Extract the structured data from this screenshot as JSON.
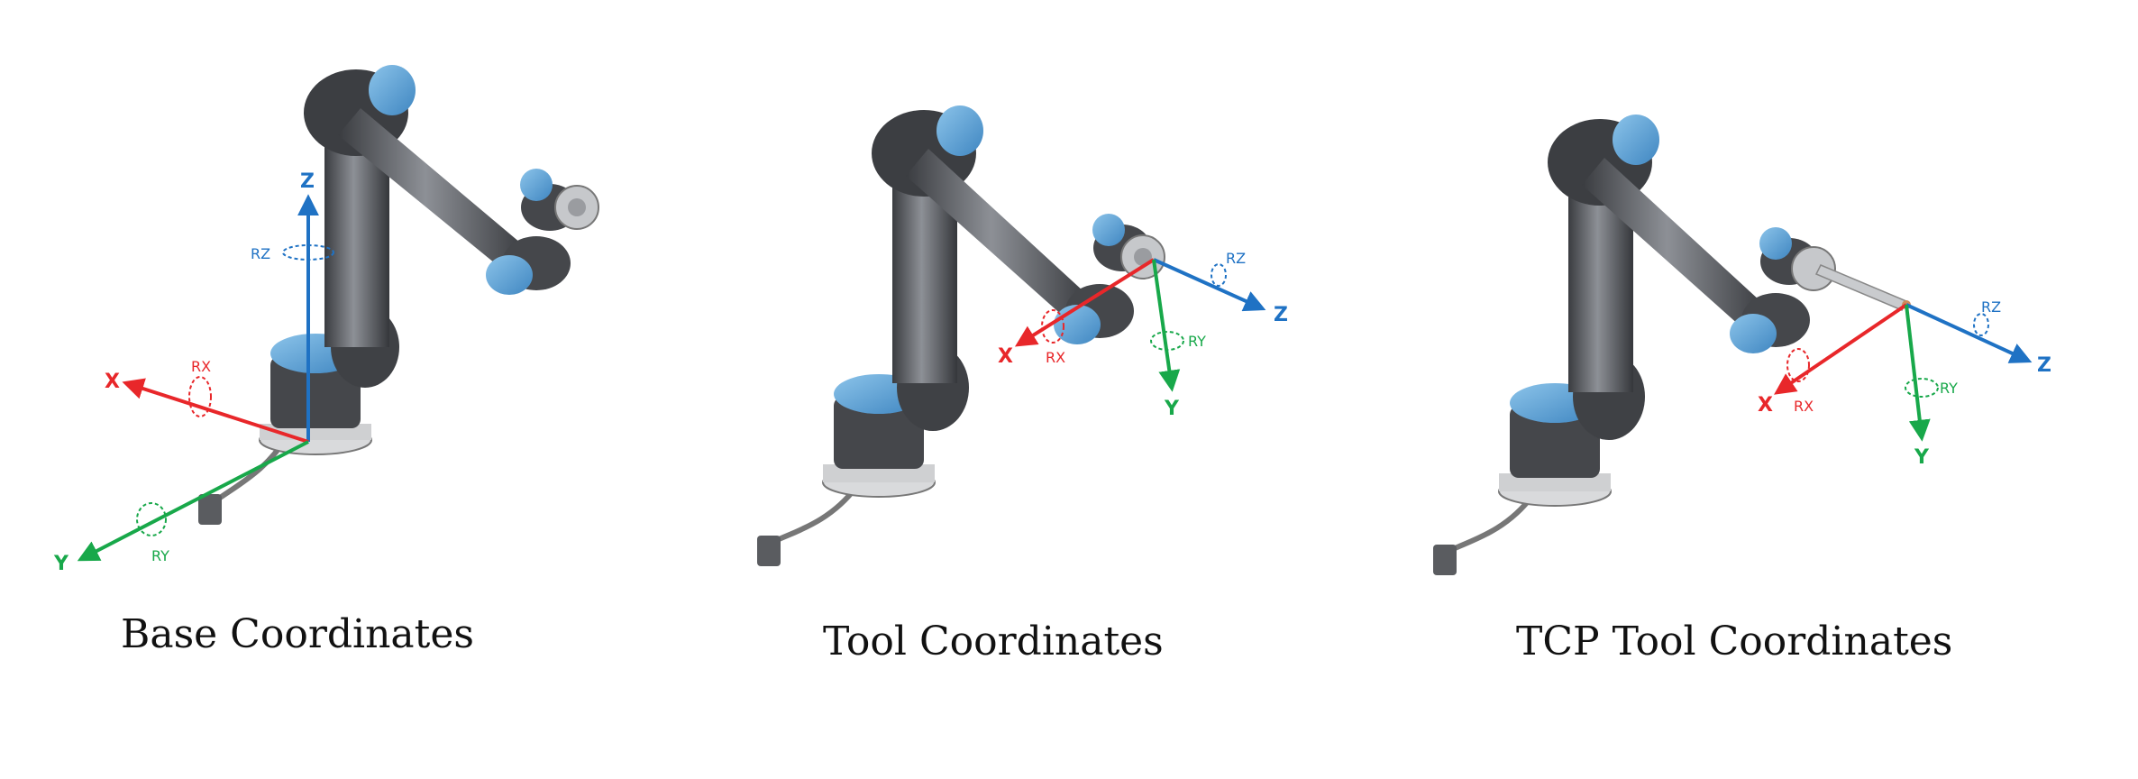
{
  "colors": {
    "x": "#e8272a",
    "y": "#18a84a",
    "z": "#1f72c4",
    "robot_dark": "#4a4c50",
    "robot_joint": "#5aa3d6"
  },
  "panels": [
    {
      "caption": "Base Coordinates",
      "axes": {
        "x": "X",
        "y": "Y",
        "z": "Z"
      },
      "rotations": {
        "rx": "RX",
        "ry": "RY",
        "rz": "RZ"
      }
    },
    {
      "caption": "Tool Coordinates",
      "axes": {
        "x": "X",
        "y": "Y",
        "z": "Z"
      },
      "rotations": {
        "rx": "RX",
        "ry": "RY",
        "rz": "RZ"
      }
    },
    {
      "caption": "TCP Tool Coordinates",
      "axes": {
        "x": "X",
        "y": "Y",
        "z": "Z"
      },
      "rotations": {
        "rx": "RX",
        "ry": "RY",
        "rz": "RZ"
      }
    }
  ]
}
